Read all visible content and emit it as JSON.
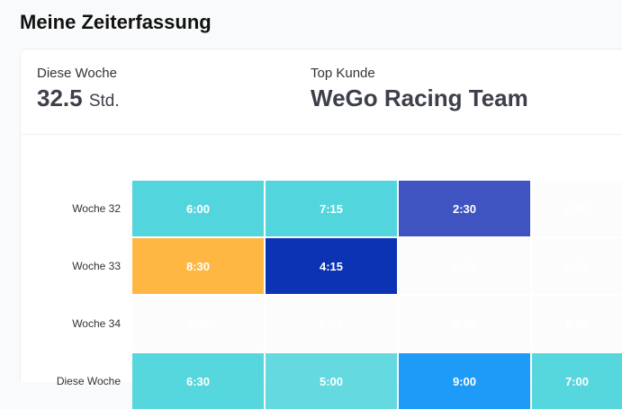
{
  "page_title": "Meine Zeiterfassung",
  "stats": {
    "week_label": "Diese Woche",
    "week_value": "32.5",
    "week_unit": "Std.",
    "top_label": "Top Kunde",
    "top_value": "WeGo Racing Team"
  },
  "chart_data": {
    "type": "heatmap",
    "rows": [
      "Woche 32",
      "Woche 33",
      "Woche 34",
      "Diese Woche"
    ],
    "cells": [
      [
        {
          "value": "6:00",
          "color": "#53d5dd"
        },
        {
          "value": "7:15",
          "color": "#53d5dd"
        },
        {
          "value": "2:30",
          "color": "#3f53c1"
        },
        {
          "value": "0:00",
          "color": "#fcfcfc"
        }
      ],
      [
        {
          "value": "8:30",
          "color": "#ffb744"
        },
        {
          "value": "4:15",
          "color": "#0b33b3"
        },
        {
          "value": "0:00",
          "color": "#fcfcfc"
        },
        {
          "value": "0:00",
          "color": "#fcfcfc"
        }
      ],
      [
        {
          "value": "0:00",
          "color": "#fcfcfc"
        },
        {
          "value": "0:00",
          "color": "#fcfcfc"
        },
        {
          "value": "0:00",
          "color": "#fcfcfc"
        },
        {
          "value": "0:00",
          "color": "#fcfcfc"
        }
      ],
      [
        {
          "value": "6:30",
          "color": "#56d6dd"
        },
        {
          "value": "5:00",
          "color": "#64d9e0"
        },
        {
          "value": "9:00",
          "color": "#1e9af7"
        },
        {
          "value": "7:00",
          "color": "#56d6dd"
        }
      ]
    ]
  }
}
